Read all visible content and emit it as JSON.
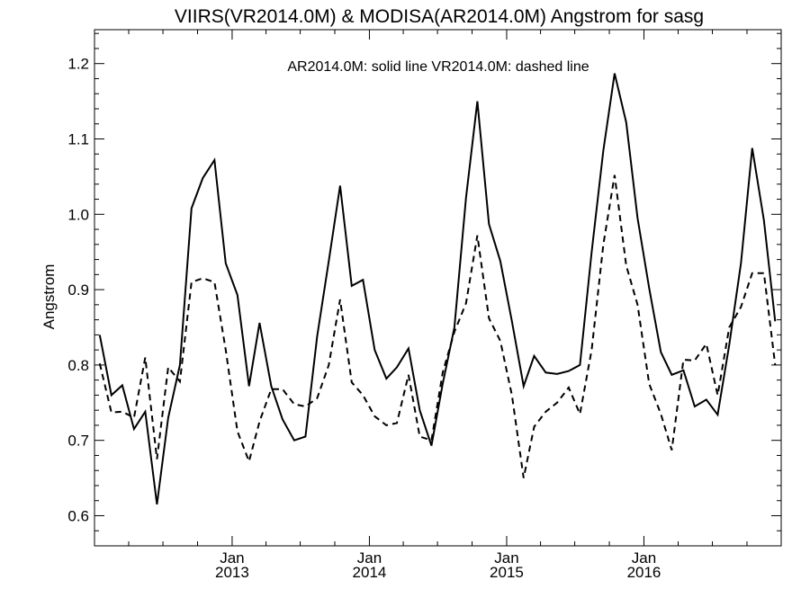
{
  "chart_data": {
    "type": "line",
    "title": "VIIRS(VR2014.0M) & MODISA(AR2014.0M)  Angstrom for sasg",
    "ylabel": "Angstrom",
    "xlabel": "",
    "legend_text": "AR2014.0M: solid line   VR2014.0M: dashed line",
    "legend_placement": "top-center",
    "grid": false,
    "ylim": [
      0.56,
      1.245
    ],
    "xlim": [
      "2012-01-01",
      "2016-12-31"
    ],
    "y_ticks": [
      {
        "value": 0.6,
        "label": "0.6"
      },
      {
        "value": 0.7,
        "label": "0.7"
      },
      {
        "value": 0.8,
        "label": "0.8"
      },
      {
        "value": 0.9,
        "label": "0.9"
      },
      {
        "value": 1.0,
        "label": "1.0"
      },
      {
        "value": 1.1,
        "label": "1.1"
      },
      {
        "value": 1.2,
        "label": "1.2"
      }
    ],
    "x_ticks": [
      {
        "date": "2013-01-01",
        "label": "Jan",
        "year": "2013"
      },
      {
        "date": "2014-01-01",
        "label": "Jan",
        "year": "2014"
      },
      {
        "date": "2015-01-01",
        "label": "Jan",
        "year": "2015"
      },
      {
        "date": "2016-01-01",
        "label": "Jan",
        "year": "2016"
      }
    ],
    "x": [
      "2012-01",
      "2012-02",
      "2012-03",
      "2012-04",
      "2012-05",
      "2012-06",
      "2012-07",
      "2012-08",
      "2012-09",
      "2012-10",
      "2012-11",
      "2012-12",
      "2013-01",
      "2013-02",
      "2013-03",
      "2013-04",
      "2013-05",
      "2013-06",
      "2013-07",
      "2013-08",
      "2013-09",
      "2013-10",
      "2013-11",
      "2013-12",
      "2014-01",
      "2014-02",
      "2014-03",
      "2014-04",
      "2014-05",
      "2014-06",
      "2014-07",
      "2014-08",
      "2014-09",
      "2014-10",
      "2014-11",
      "2014-12",
      "2015-01",
      "2015-02",
      "2015-03",
      "2015-04",
      "2015-05",
      "2015-06",
      "2015-07",
      "2015-08",
      "2015-09",
      "2015-10",
      "2015-11",
      "2015-12",
      "2016-01",
      "2016-02",
      "2016-03",
      "2016-04",
      "2016-05",
      "2016-06",
      "2016-07",
      "2016-08",
      "2016-09",
      "2016-10",
      "2016-11",
      "2016-12"
    ],
    "series": [
      {
        "name": "AR2014.0M",
        "style": "solid",
        "color": "#000000",
        "values": [
          0.84,
          0.76,
          0.773,
          0.715,
          0.738,
          0.615,
          0.73,
          0.8,
          1.008,
          1.048,
          1.072,
          0.935,
          0.893,
          0.772,
          0.856,
          0.772,
          0.728,
          0.7,
          0.705,
          0.838,
          0.938,
          1.038,
          0.905,
          0.913,
          0.82,
          0.782,
          0.797,
          0.822,
          0.74,
          0.693,
          0.775,
          0.85,
          1.022,
          1.15,
          0.987,
          0.938,
          0.858,
          0.772,
          0.812,
          0.79,
          0.788,
          0.792,
          0.8,
          0.95,
          1.085,
          1.187,
          1.122,
          0.995,
          0.902,
          0.817,
          0.787,
          0.793,
          0.745,
          0.754,
          0.734,
          0.827,
          0.935,
          1.088,
          0.992,
          0.858
        ]
      },
      {
        "name": "VR2014.0M",
        "style": "dashed",
        "color": "#000000",
        "values": [
          0.802,
          0.737,
          0.738,
          0.73,
          0.81,
          0.675,
          0.797,
          0.778,
          0.91,
          0.915,
          0.91,
          0.82,
          0.712,
          0.672,
          0.725,
          0.768,
          0.768,
          0.748,
          0.745,
          0.756,
          0.8,
          0.887,
          0.777,
          0.76,
          0.732,
          0.72,
          0.723,
          0.787,
          0.705,
          0.7,
          0.79,
          0.844,
          0.882,
          0.972,
          0.862,
          0.832,
          0.76,
          0.65,
          0.718,
          0.738,
          0.75,
          0.77,
          0.735,
          0.82,
          0.96,
          1.052,
          0.932,
          0.88,
          0.775,
          0.735,
          0.687,
          0.807,
          0.806,
          0.828,
          0.76,
          0.85,
          0.877,
          0.922,
          0.922,
          0.8
        ]
      }
    ]
  }
}
